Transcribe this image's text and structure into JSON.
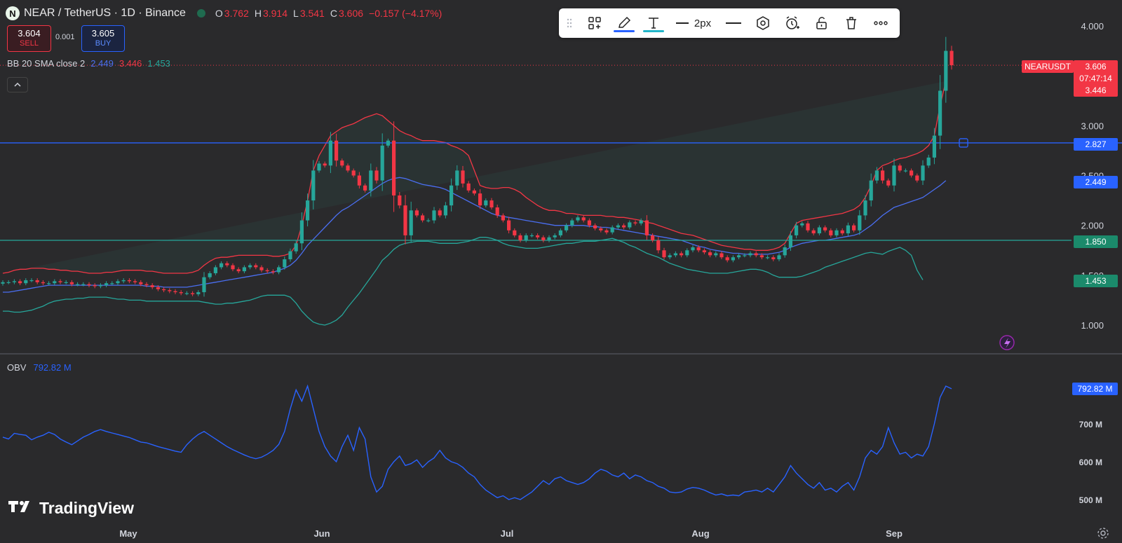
{
  "header": {
    "symbol_badge": "N",
    "title": "NEAR / TetherUS · 1D · Binance",
    "ohlc": [
      {
        "key": "O",
        "value": "3.762"
      },
      {
        "key": "H",
        "value": "3.914"
      },
      {
        "key": "L",
        "value": "3.541"
      },
      {
        "key": "C",
        "value": "3.606"
      },
      {
        "key": "",
        "value": "−0.157 (−4.17%)"
      }
    ]
  },
  "trade": {
    "sell_price": "3.604",
    "sell_label": "SELL",
    "spread": "0.001",
    "buy_price": "3.605",
    "buy_label": "BUY"
  },
  "bb_indicator": {
    "label": "BB 20 SMA close 2",
    "basis": "2.449",
    "upper": "3.446",
    "lower": "1.453",
    "basis_color": "#4a6ef0",
    "upper_color": "#f23645",
    "lower_color": "#26a69a"
  },
  "collapse_symbol": "^",
  "toolbar": {
    "width_label": "2px",
    "icons": [
      "drag-handle-icon",
      "object-tree-icon",
      "pencil-icon",
      "text-icon",
      "line-weight-icon",
      "line-style-icon",
      "settings-hexagon-icon",
      "alert-clock-icon",
      "lock-icon",
      "trash-icon",
      "more-icon"
    ]
  },
  "price_axis": {
    "ticks": [
      "4.000",
      "3.000",
      "2.500",
      "2.000",
      "1.500",
      "1.000"
    ],
    "ticker_label": "NEARUSDT",
    "last_price": "3.606",
    "countdown": "07:47:14",
    "upper_tag": "3.446",
    "resistance_tag": "2.827",
    "basis_tag": "2.449",
    "support_tag": "1.850",
    "lower_tag": "1.453"
  },
  "time_axis": {
    "labels": [
      "May",
      "Jun",
      "Jul",
      "Aug",
      "Sep"
    ]
  },
  "obv": {
    "label": "OBV",
    "value": "792.82 M",
    "ticks": [
      "700 M",
      "600 M",
      "500 M"
    ]
  },
  "brand": {
    "name": "TradingView"
  },
  "colors": {
    "up": "#26a69a",
    "down": "#f23645",
    "basis": "#4a6ef0",
    "upper": "#f23645",
    "lower": "#26a69a",
    "hline_blue": "#2962ff",
    "hline_green": "#26a69a",
    "obv": "#2962ff"
  },
  "chart_data": {
    "type": "candlestick",
    "symbol": "NEAR / TetherUS",
    "timeframe": "1D",
    "ylim": [
      1.0,
      4.0
    ],
    "horizontal_lines": [
      2.827,
      1.85
    ],
    "close": [
      1.43,
      1.43,
      1.44,
      1.42,
      1.45,
      1.45,
      1.43,
      1.42,
      1.42,
      1.44,
      1.43,
      1.43,
      1.41,
      1.41,
      1.41,
      1.4,
      1.39,
      1.4,
      1.42,
      1.42,
      1.44,
      1.45,
      1.44,
      1.43,
      1.41,
      1.4,
      1.38,
      1.36,
      1.35,
      1.34,
      1.33,
      1.32,
      1.32,
      1.31,
      1.33,
      1.48,
      1.52,
      1.58,
      1.62,
      1.6,
      1.56,
      1.54,
      1.58,
      1.6,
      1.58,
      1.55,
      1.54,
      1.53,
      1.58,
      1.66,
      1.74,
      1.82,
      2.05,
      2.25,
      2.55,
      2.62,
      2.6,
      2.85,
      2.65,
      2.6,
      2.55,
      2.5,
      2.4,
      2.35,
      2.55,
      2.45,
      2.8,
      2.85,
      2.3,
      2.2,
      1.9,
      2.15,
      2.1,
      2.05,
      2.05,
      2.15,
      2.1,
      2.2,
      2.4,
      2.55,
      2.42,
      2.35,
      2.32,
      2.2,
      2.25,
      2.18,
      2.1,
      2.05,
      1.95,
      1.9,
      1.85,
      1.9,
      1.9,
      1.88,
      1.85,
      1.88,
      1.9,
      1.95,
      2.0,
      2.05,
      2.08,
      2.05,
      2.0,
      1.97,
      1.95,
      1.93,
      1.98,
      2.0,
      1.98,
      2.03,
      2.02,
      2.05,
      1.9,
      1.85,
      1.75,
      1.68,
      1.7,
      1.72,
      1.7,
      1.75,
      1.78,
      1.75,
      1.73,
      1.7,
      1.72,
      1.68,
      1.65,
      1.68,
      1.7,
      1.7,
      1.72,
      1.7,
      1.68,
      1.68,
      1.66,
      1.7,
      1.78,
      1.9,
      2.0,
      2.02,
      1.95,
      1.92,
      1.98,
      1.95,
      1.9,
      1.95,
      1.92,
      2.0,
      1.95,
      2.1,
      2.25,
      2.45,
      2.55,
      2.45,
      2.4,
      2.6,
      2.55,
      2.55,
      2.5,
      2.45,
      2.6,
      2.68,
      2.9,
      3.35,
      3.75,
      3.606
    ],
    "bb_upper": [
      1.52,
      1.53,
      1.55,
      1.56,
      1.56,
      1.57,
      1.57,
      1.57,
      1.56,
      1.56,
      1.55,
      1.55,
      1.54,
      1.54,
      1.53,
      1.52,
      1.52,
      1.52,
      1.53,
      1.53,
      1.54,
      1.55,
      1.55,
      1.55,
      1.55,
      1.54,
      1.54,
      1.53,
      1.52,
      1.52,
      1.52,
      1.52,
      1.52,
      1.53,
      1.55,
      1.6,
      1.64,
      1.67,
      1.68,
      1.68,
      1.69,
      1.7,
      1.7,
      1.7,
      1.7,
      1.7,
      1.7,
      1.69,
      1.69,
      1.7,
      1.72,
      1.8,
      2.0,
      2.25,
      2.55,
      2.7,
      2.8,
      2.9,
      2.94,
      2.98,
      3.0,
      3.02,
      3.05,
      3.08,
      3.1,
      3.12,
      3.1,
      3.05,
      3.0,
      2.95,
      2.92,
      2.9,
      2.87,
      2.85,
      2.85,
      2.85,
      2.84,
      2.83,
      2.8,
      2.78,
      2.75,
      2.7,
      2.55,
      2.4,
      2.38,
      2.37,
      2.37,
      2.38,
      2.38,
      2.36,
      2.33,
      2.28,
      2.24,
      2.2,
      2.17,
      2.15,
      2.15,
      2.14,
      2.12,
      2.12,
      2.11,
      2.1,
      2.1,
      2.1,
      2.1,
      2.09,
      2.09,
      2.08,
      2.08,
      2.07,
      2.06,
      2.05,
      2.03,
      2.02,
      2.0,
      1.98,
      1.96,
      1.94,
      1.92,
      1.91,
      1.9,
      1.88,
      1.86,
      1.84,
      1.82,
      1.8,
      1.79,
      1.78,
      1.77,
      1.76,
      1.76,
      1.75,
      1.75,
      1.75,
      1.76,
      1.78,
      1.82,
      1.92,
      2.02,
      2.05,
      2.06,
      2.07,
      2.08,
      2.09,
      2.1,
      2.11,
      2.12,
      2.14,
      2.16,
      2.2,
      2.28,
      2.4,
      2.55,
      2.6,
      2.62,
      2.65,
      2.67,
      2.68,
      2.7,
      2.72,
      2.75,
      2.8,
      2.9,
      3.2,
      3.446
    ],
    "bb_basis": [
      1.33,
      1.33,
      1.34,
      1.35,
      1.36,
      1.37,
      1.38,
      1.39,
      1.4,
      1.4,
      1.4,
      1.4,
      1.4,
      1.4,
      1.4,
      1.4,
      1.4,
      1.4,
      1.4,
      1.4,
      1.4,
      1.4,
      1.4,
      1.4,
      1.4,
      1.39,
      1.39,
      1.39,
      1.38,
      1.38,
      1.38,
      1.38,
      1.38,
      1.39,
      1.4,
      1.41,
      1.42,
      1.43,
      1.44,
      1.45,
      1.46,
      1.47,
      1.48,
      1.49,
      1.5,
      1.51,
      1.52,
      1.53,
      1.55,
      1.57,
      1.6,
      1.65,
      1.72,
      1.8,
      1.86,
      1.92,
      1.98,
      2.04,
      2.1,
      2.15,
      2.18,
      2.22,
      2.26,
      2.3,
      2.34,
      2.38,
      2.42,
      2.45,
      2.47,
      2.48,
      2.47,
      2.45,
      2.43,
      2.41,
      2.4,
      2.39,
      2.38,
      2.36,
      2.33,
      2.3,
      2.27,
      2.24,
      2.21,
      2.18,
      2.15,
      2.12,
      2.1,
      2.09,
      2.08,
      2.07,
      2.06,
      2.05,
      2.04,
      2.03,
      2.02,
      2.01,
      2.0,
      2.0,
      2.0,
      2.0,
      2.0,
      2.0,
      1.99,
      1.99,
      1.98,
      1.98,
      1.97,
      1.96,
      1.95,
      1.94,
      1.93,
      1.92,
      1.91,
      1.9,
      1.89,
      1.88,
      1.87,
      1.86,
      1.85,
      1.83,
      1.81,
      1.79,
      1.78,
      1.76,
      1.75,
      1.74,
      1.73,
      1.72,
      1.72,
      1.71,
      1.71,
      1.71,
      1.71,
      1.71,
      1.72,
      1.73,
      1.75,
      1.78,
      1.8,
      1.82,
      1.83,
      1.84,
      1.85,
      1.85,
      1.86,
      1.87,
      1.88,
      1.89,
      1.9,
      1.92,
      1.96,
      2.0,
      2.05,
      2.1,
      2.14,
      2.18,
      2.2,
      2.22,
      2.24,
      2.26,
      2.28,
      2.32,
      2.36,
      2.4,
      2.449
    ],
    "bb_lower": [
      1.14,
      1.14,
      1.13,
      1.13,
      1.14,
      1.15,
      1.17,
      1.19,
      1.22,
      1.24,
      1.25,
      1.26,
      1.26,
      1.27,
      1.27,
      1.28,
      1.28,
      1.28,
      1.28,
      1.27,
      1.26,
      1.26,
      1.25,
      1.25,
      1.25,
      1.24,
      1.24,
      1.24,
      1.24,
      1.24,
      1.24,
      1.24,
      1.24,
      1.24,
      1.24,
      1.23,
      1.22,
      1.21,
      1.21,
      1.22,
      1.22,
      1.23,
      1.24,
      1.25,
      1.27,
      1.29,
      1.3,
      1.3,
      1.3,
      1.3,
      1.28,
      1.22,
      1.14,
      1.08,
      1.03,
      1.01,
      1.0,
      1.02,
      1.05,
      1.1,
      1.18,
      1.25,
      1.32,
      1.4,
      1.48,
      1.56,
      1.65,
      1.7,
      1.76,
      1.8,
      1.82,
      1.83,
      1.84,
      1.84,
      1.84,
      1.83,
      1.82,
      1.82,
      1.82,
      1.82,
      1.83,
      1.84,
      1.86,
      1.88,
      1.88,
      1.87,
      1.85,
      1.82,
      1.8,
      1.79,
      1.78,
      1.77,
      1.77,
      1.77,
      1.78,
      1.79,
      1.8,
      1.81,
      1.82,
      1.82,
      1.83,
      1.84,
      1.84,
      1.84,
      1.85,
      1.86,
      1.87,
      1.85,
      1.83,
      1.8,
      1.78,
      1.75,
      1.72,
      1.7,
      1.68,
      1.65,
      1.62,
      1.6,
      1.58,
      1.56,
      1.55,
      1.54,
      1.53,
      1.52,
      1.52,
      1.52,
      1.52,
      1.53,
      1.54,
      1.55,
      1.56,
      1.56,
      1.55,
      1.53,
      1.5,
      1.48,
      1.48,
      1.48,
      1.48,
      1.49,
      1.51,
      1.53,
      1.55,
      1.58,
      1.6,
      1.62,
      1.64,
      1.66,
      1.68,
      1.7,
      1.72,
      1.73,
      1.72,
      1.71,
      1.74,
      1.76,
      1.78,
      1.75,
      1.7,
      1.55,
      1.453
    ],
    "obv": [
      665,
      660,
      675,
      672,
      670,
      658,
      665,
      670,
      678,
      672,
      660,
      652,
      645,
      655,
      665,
      672,
      680,
      685,
      680,
      676,
      672,
      668,
      664,
      658,
      652,
      650,
      645,
      640,
      636,
      632,
      628,
      625,
      645,
      660,
      672,
      680,
      670,
      660,
      650,
      640,
      632,
      625,
      618,
      612,
      608,
      612,
      620,
      630,
      646,
      680,
      740,
      790,
      760,
      800,
      740,
      680,
      640,
      615,
      600,
      640,
      670,
      630,
      690,
      660,
      560,
      520,
      535,
      580,
      600,
      615,
      590,
      595,
      605,
      585,
      600,
      610,
      630,
      610,
      600,
      595,
      585,
      570,
      560,
      540,
      525,
      515,
      505,
      510,
      500,
      505,
      500,
      510,
      520,
      535,
      550,
      540,
      555,
      560,
      550,
      545,
      540,
      545,
      555,
      570,
      580,
      575,
      565,
      560,
      570,
      555,
      565,
      560,
      550,
      545,
      535,
      530,
      520,
      518,
      520,
      528,
      532,
      530,
      525,
      518,
      512,
      515,
      510,
      512,
      510,
      520,
      522,
      525,
      520,
      530,
      520,
      540,
      560,
      590,
      570,
      555,
      540,
      530,
      545,
      525,
      530,
      520,
      535,
      545,
      525,
      560,
      610,
      630,
      620,
      640,
      690,
      650,
      620,
      625,
      610,
      620,
      615,
      640,
      700,
      770,
      800,
      792.82
    ]
  }
}
